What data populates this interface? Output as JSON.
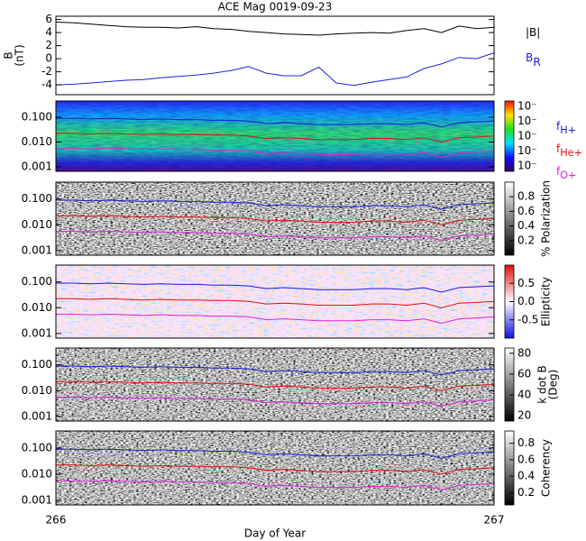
{
  "chart_data": [
    {
      "type": "line",
      "title": "ACE Mag 0019-09-23",
      "ylabel": [
        "B",
        "(nT)"
      ],
      "x": [
        266,
        266.04,
        266.08,
        266.12,
        266.16,
        266.2,
        266.24,
        266.28,
        266.32,
        266.36,
        266.4,
        266.44,
        266.48,
        266.52,
        266.56,
        266.6,
        266.64,
        266.68,
        266.72,
        266.76,
        266.8,
        266.84,
        266.88,
        266.92,
        266.96,
        267
      ],
      "ylim": [
        -5.5,
        6.5
      ],
      "yticks": [
        6,
        4,
        2,
        0,
        -2,
        -4
      ],
      "series": [
        {
          "name": {
            "main": "|B|"
          },
          "color": "#000000",
          "values": [
            5.6,
            5.5,
            5.3,
            5.1,
            4.9,
            4.8,
            4.8,
            4.7,
            4.9,
            4.6,
            4.5,
            4.2,
            4.0,
            3.8,
            3.7,
            3.6,
            3.8,
            3.9,
            4.0,
            3.9,
            4.3,
            4.6,
            4.0,
            5.0,
            4.6,
            4.8
          ]
        },
        {
          "name": {
            "main": "B",
            "sub": "R"
          },
          "color": "#2020e0",
          "values": [
            -4.0,
            -3.9,
            -3.7,
            -3.5,
            -3.3,
            -3.2,
            -2.9,
            -2.7,
            -2.5,
            -2.2,
            -1.8,
            -1.2,
            -2.2,
            -2.6,
            -2.6,
            -1.3,
            -3.7,
            -4.1,
            -3.6,
            -3.2,
            -2.8,
            -1.5,
            -0.8,
            0.2,
            0.0,
            0.9
          ]
        }
      ]
    },
    {
      "type": "spectrogram",
      "log_y": true,
      "ylim": [
        0.00066,
        0.45
      ],
      "yticks": [
        {
          "value": 0.1,
          "label": "0.100"
        },
        {
          "value": 0.01,
          "label": "0.010"
        },
        {
          "value": 0.001,
          "label": "0.001"
        }
      ],
      "colormap": "rainbow",
      "colorbar_labels": [
        "10⁻",
        "10⁻",
        "10⁻",
        "10⁻",
        "10⁻"
      ],
      "series": [
        {
          "name": {
            "main": "f",
            "sub": "H+"
          },
          "color": "#1a1ad8",
          "values": [
            0.09,
            0.09,
            0.085,
            0.09,
            0.085,
            0.08,
            0.085,
            0.08,
            0.08,
            0.075,
            0.075,
            0.07,
            0.055,
            0.06,
            0.055,
            0.05,
            0.05,
            0.05,
            0.055,
            0.055,
            0.05,
            0.06,
            0.04,
            0.06,
            0.065,
            0.07
          ]
        },
        {
          "name": {
            "main": "f",
            "sub": "He+"
          },
          "color": "#e01010",
          "values": [
            0.0225,
            0.0225,
            0.021,
            0.0225,
            0.021,
            0.02,
            0.021,
            0.02,
            0.02,
            0.019,
            0.019,
            0.0175,
            0.014,
            0.015,
            0.014,
            0.0125,
            0.0125,
            0.0125,
            0.014,
            0.014,
            0.0125,
            0.015,
            0.01,
            0.015,
            0.016,
            0.0175
          ]
        },
        {
          "name": {
            "main": "f",
            "sub": "O+"
          },
          "color": "#e020e0",
          "values": [
            0.0056,
            0.0056,
            0.0053,
            0.0056,
            0.0053,
            0.005,
            0.0053,
            0.005,
            0.005,
            0.0047,
            0.0047,
            0.0044,
            0.0034,
            0.0037,
            0.0034,
            0.0031,
            0.0031,
            0.0031,
            0.0034,
            0.0034,
            0.0031,
            0.0037,
            0.0025,
            0.0037,
            0.004,
            0.0044
          ]
        }
      ]
    },
    {
      "type": "spectrogram",
      "log_y": true,
      "ylim": [
        0.00066,
        0.45
      ],
      "yticks": [
        {
          "value": 0.1,
          "label": "0.100"
        },
        {
          "value": 0.01,
          "label": "0.010"
        },
        {
          "value": 0.001,
          "label": "0.001"
        }
      ],
      "colormap": "gray",
      "colorbar_label": "% Polarization",
      "clim": [
        0,
        1
      ],
      "colorbar_ticks": [
        0.8,
        0.6,
        0.4,
        0.2
      ]
    },
    {
      "type": "spectrogram",
      "log_y": true,
      "ylim": [
        0.00066,
        0.45
      ],
      "yticks": [
        {
          "value": 0.1,
          "label": "0.100"
        },
        {
          "value": 0.01,
          "label": "0.010"
        },
        {
          "value": 0.001,
          "label": "0.001"
        }
      ],
      "colormap": "bwr",
      "colorbar_label": "Ellipticity",
      "clim": [
        -1,
        1
      ],
      "colorbar_ticks": [
        0.5,
        {
          "value": 0,
          "label": "0.0"
        },
        -0.5
      ]
    },
    {
      "type": "spectrogram",
      "log_y": true,
      "ylim": [
        0.00066,
        0.45
      ],
      "yticks": [
        {
          "value": 0.1,
          "label": "0.100"
        },
        {
          "value": 0.01,
          "label": "0.010"
        },
        {
          "value": 0.001,
          "label": "0.001"
        }
      ],
      "colormap": "gray",
      "colorbar_label": [
        "k dot B",
        "(Deg)"
      ],
      "clim": [
        15,
        85
      ],
      "colorbar_ticks": [
        80,
        60,
        40,
        20
      ]
    },
    {
      "type": "spectrogram",
      "log_y": true,
      "ylim": [
        0.00066,
        0.45
      ],
      "yticks": [
        {
          "value": 0.1,
          "label": "0.100"
        },
        {
          "value": 0.01,
          "label": "0.010"
        },
        {
          "value": 0.001,
          "label": "0.001"
        }
      ],
      "colormap": "gray",
      "colorbar_label": "Coherency",
      "clim": [
        0.05,
        0.95
      ],
      "colorbar_ticks": [
        0.8,
        0.6,
        0.4,
        0.2
      ],
      "xlim": [
        266,
        267
      ],
      "xticks": [
        266,
        267
      ],
      "xlabel": "Day of Year"
    }
  ]
}
